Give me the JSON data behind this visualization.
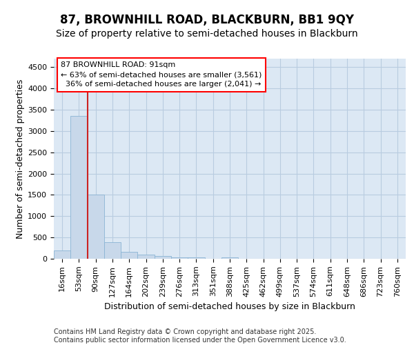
{
  "title": "87, BROWNHILL ROAD, BLACKBURN, BB1 9QY",
  "subtitle": "Size of property relative to semi-detached houses in Blackburn",
  "xlabel": "Distribution of semi-detached houses by size in Blackburn",
  "ylabel": "Number of semi-detached properties",
  "footer": "Contains HM Land Registry data © Crown copyright and database right 2025.\nContains public sector information licensed under the Open Government Licence v3.0.",
  "categories": [
    "16sqm",
    "53sqm",
    "90sqm",
    "127sqm",
    "164sqm",
    "202sqm",
    "239sqm",
    "276sqm",
    "313sqm",
    "351sqm",
    "388sqm",
    "425sqm",
    "462sqm",
    "499sqm",
    "537sqm",
    "574sqm",
    "611sqm",
    "648sqm",
    "686sqm",
    "723sqm",
    "760sqm"
  ],
  "values": [
    200,
    3350,
    1500,
    390,
    155,
    100,
    60,
    40,
    35,
    5,
    40,
    0,
    0,
    0,
    0,
    0,
    0,
    0,
    0,
    0,
    0
  ],
  "bar_color": "#c8d8ea",
  "bar_edge_color": "#8ab4d4",
  "grid_color": "#b8cce0",
  "bg_color": "#dce8f4",
  "fig_bg_color": "#ffffff",
  "annotation_text": "87 BROWNHILL ROAD: 91sqm\n← 63% of semi-detached houses are smaller (3,561)\n  36% of semi-detached houses are larger (2,041) →",
  "vline_x_index": 2,
  "vline_color": "#cc2222",
  "ylim": [
    0,
    4700
  ],
  "yticks": [
    0,
    500,
    1000,
    1500,
    2000,
    2500,
    3000,
    3500,
    4000,
    4500
  ],
  "title_fontsize": 12,
  "subtitle_fontsize": 10,
  "tick_fontsize": 8,
  "ylabel_fontsize": 9,
  "xlabel_fontsize": 9,
  "annot_fontsize": 8,
  "footer_fontsize": 7
}
